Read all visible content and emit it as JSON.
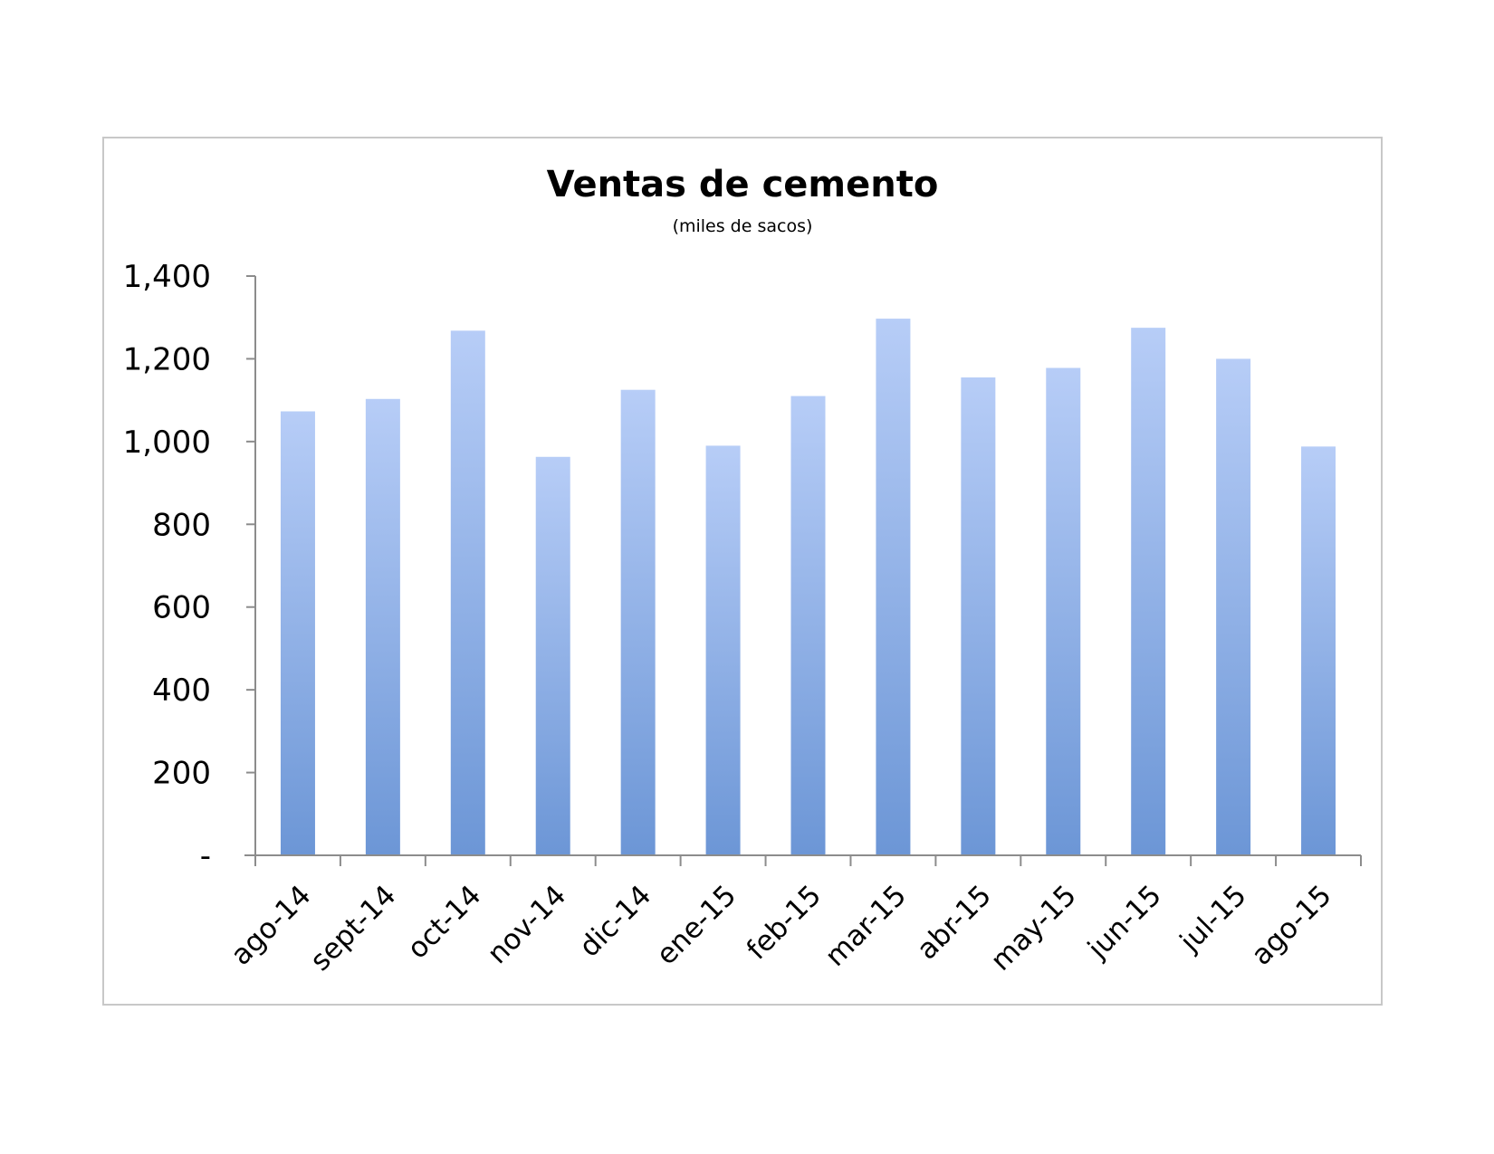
{
  "chart_data": {
    "type": "bar",
    "title": "Ventas de cemento",
    "subtitle": "(miles de sacos)",
    "xlabel": "",
    "ylabel": "",
    "categories": [
      "ago-14",
      "sept-14",
      "oct-14",
      "nov-14",
      "dic-14",
      "ene-15",
      "feb-15",
      "mar-15",
      "abr-15",
      "may-15",
      "jun-15",
      "jul-15",
      "ago-15"
    ],
    "values": [
      1073,
      1103,
      1268,
      963,
      1125,
      990,
      1110,
      1297,
      1155,
      1178,
      1275,
      1200,
      988
    ],
    "ylim": [
      0,
      1400
    ],
    "yticks": [
      0,
      200,
      400,
      600,
      800,
      1000,
      1200,
      1400
    ],
    "ytick_labels": [
      "-",
      "200",
      "400",
      "600",
      "800",
      "1,000",
      "1,200",
      "1,400"
    ],
    "grid": false,
    "legend": "none",
    "colors": {
      "bar_top": "#b7cdf7",
      "bar_bottom": "#6c96d6",
      "axis": "#8c8c8c"
    }
  }
}
